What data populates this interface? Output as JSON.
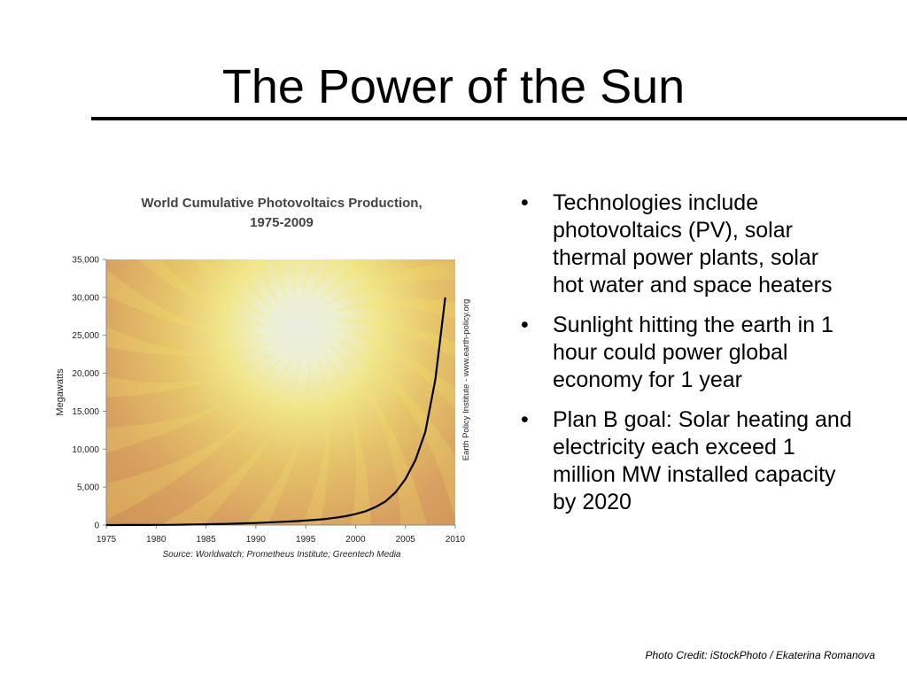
{
  "slide": {
    "title": "The Power of the Sun",
    "bullets": [
      "Technologies include photovoltaics (PV), solar thermal power plants, solar hot water and space heaters",
      "Sunlight hitting the earth in 1 hour could power global economy for 1 year",
      "Plan B goal: Solar heating and electricity each exceed 1 million MW installed capacity by 2020"
    ],
    "bullet_symbol": "•",
    "photo_credit": "Photo Credit: iStockPhoto / Ekaterina Romanova"
  },
  "chart_data": {
    "type": "line",
    "title_lines": [
      "World Cumulative Photovoltaics Production,",
      "1975-2009"
    ],
    "ylabel": "Megawatts",
    "xlabel": "",
    "side_label": "Earth Policy Institute - www.earth-policy.org",
    "source": "Source: Worldwatch; Prometheus Institute; Greentech Media",
    "xlim": [
      1975,
      2010
    ],
    "ylim": [
      0,
      35000
    ],
    "x_ticks": [
      "1975",
      "1980",
      "1985",
      "1990",
      "1995",
      "2000",
      "2005",
      "2010"
    ],
    "y_ticks": [
      "0",
      "5,000",
      "10,000",
      "15,000",
      "20,000",
      "25,000",
      "30,000",
      "35,000"
    ],
    "grid": false,
    "series": [
      {
        "x": [
          1975,
          1976,
          1977,
          1978,
          1979,
          1980,
          1981,
          1982,
          1983,
          1984,
          1985,
          1986,
          1987,
          1988,
          1989,
          1990,
          1991,
          1992,
          1993,
          1994,
          1995,
          1996,
          1997,
          1998,
          1999,
          2000,
          2001,
          2002,
          2003,
          2004,
          2005,
          2006,
          2007,
          2008,
          2009
        ],
        "values": [
          2,
          4,
          6,
          10,
          14,
          20,
          28,
          37,
          58,
          80,
          100,
          126,
          155,
          188,
          228,
          274,
          329,
          387,
          447,
          517,
          595,
          684,
          810,
          964,
          1164,
          1452,
          1824,
          2374,
          3118,
          4304,
          6060,
          8550,
          12280,
          19170,
          30000
        ]
      }
    ],
    "colors": {
      "line": "#000000",
      "plot_bg_edge": "#c98a52",
      "sun_core": "#e8ebe0",
      "sun_glow": "#f3e75a"
    }
  }
}
